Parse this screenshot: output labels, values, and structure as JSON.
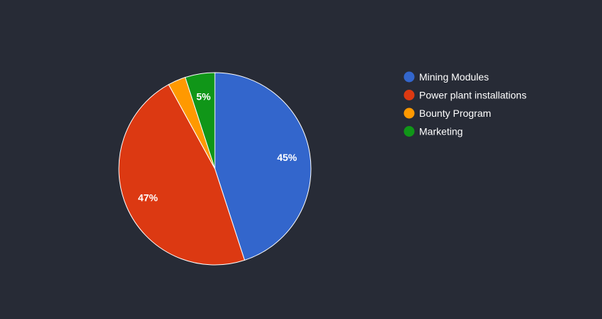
{
  "chart_data": {
    "type": "pie",
    "title": "",
    "legend_position": "right",
    "slices": [
      {
        "name": "Mining Modules",
        "value": 45,
        "label": "45%",
        "color": "#3366cc"
      },
      {
        "name": "Power plant installations",
        "value": 47,
        "label": "47%",
        "color": "#dc3912"
      },
      {
        "name": "Bounty Program",
        "value": 3,
        "label": "",
        "color": "#ff9900"
      },
      {
        "name": "Marketing",
        "value": 5,
        "label": "5%",
        "color": "#109618"
      }
    ],
    "colors": {
      "background": "#272b36",
      "slice_border": "#ffffff",
      "text": "#ffffff"
    }
  }
}
